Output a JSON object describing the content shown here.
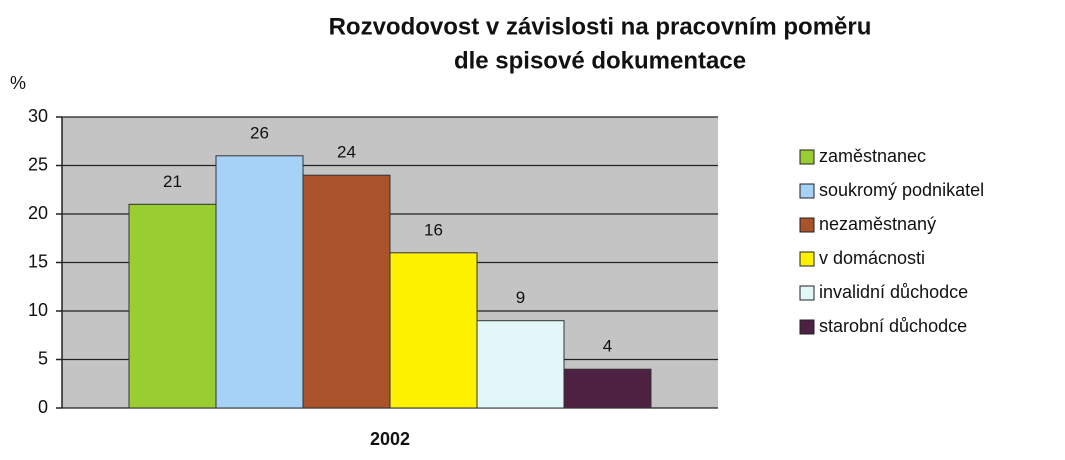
{
  "chart_data": {
    "type": "bar",
    "title": [
      "Rozvodovost v závislosti na pracovním poměru",
      "dle spisové dokumentace"
    ],
    "ylabel": "%",
    "categories": [
      "2002"
    ],
    "series": [
      {
        "name": "zaměstnanec",
        "color": "#9acd32",
        "values": [
          21
        ]
      },
      {
        "name": "soukromý podnikatel",
        "color": "#a6d2f7",
        "values": [
          26
        ]
      },
      {
        "name": "nezaměstnaný",
        "color": "#a9532a",
        "values": [
          24
        ]
      },
      {
        "name": "v domácnosti",
        "color": "#fff200",
        "values": [
          16
        ]
      },
      {
        "name": "invalidní důchodce",
        "color": "#e2f7f8",
        "values": [
          9
        ]
      },
      {
        "name": "starobní důchodce",
        "color": "#4d2142",
        "values": [
          4
        ]
      }
    ],
    "ylim": [
      0,
      30
    ],
    "yticks": [
      0,
      5,
      10,
      15,
      20,
      25,
      30
    ],
    "grid": true,
    "legend": "right"
  }
}
